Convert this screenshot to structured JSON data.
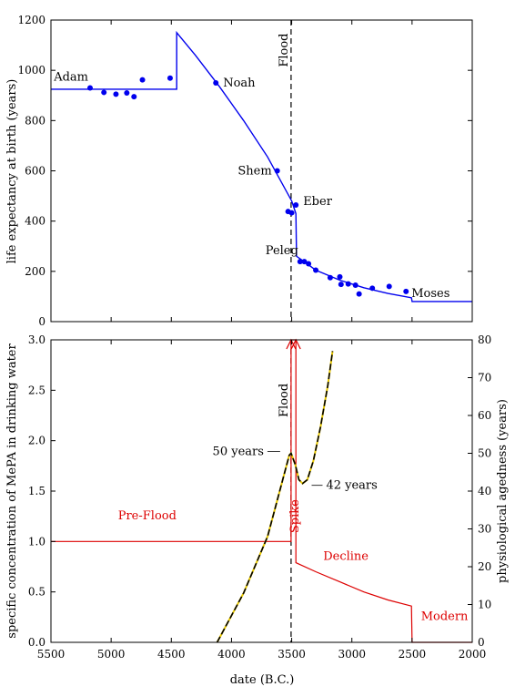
{
  "chart_data": [
    {
      "type": "scatter",
      "ylabel": "life expectancy at birth (years)",
      "xlim": [
        5500,
        2000
      ],
      "ylim": [
        0,
        1200
      ],
      "yticks": [
        0,
        200,
        400,
        600,
        800,
        1000,
        1200
      ],
      "points": [
        {
          "x": 5175,
          "y": 930
        },
        {
          "x": 5060,
          "y": 912
        },
        {
          "x": 4960,
          "y": 905
        },
        {
          "x": 4870,
          "y": 910
        },
        {
          "x": 4810,
          "y": 895
        },
        {
          "x": 4740,
          "y": 962
        },
        {
          "x": 4510,
          "y": 969
        },
        {
          "x": 4130,
          "y": 950
        },
        {
          "x": 3620,
          "y": 600
        },
        {
          "x": 3530,
          "y": 438
        },
        {
          "x": 3500,
          "y": 433
        },
        {
          "x": 3465,
          "y": 464
        },
        {
          "x": 3430,
          "y": 239
        },
        {
          "x": 3395,
          "y": 239
        },
        {
          "x": 3360,
          "y": 230
        },
        {
          "x": 3300,
          "y": 205
        },
        {
          "x": 3180,
          "y": 175
        },
        {
          "x": 3100,
          "y": 178
        },
        {
          "x": 3090,
          "y": 148
        },
        {
          "x": 3030,
          "y": 150
        },
        {
          "x": 2970,
          "y": 145
        },
        {
          "x": 2940,
          "y": 110
        },
        {
          "x": 2830,
          "y": 133
        },
        {
          "x": 2690,
          "y": 140
        },
        {
          "x": 2550,
          "y": 120
        }
      ],
      "model_curve": [
        {
          "x": 5500,
          "y": 925
        },
        {
          "x": 4455,
          "y": 925
        },
        {
          "x": 4455,
          "y": 1150
        },
        {
          "x": 4300,
          "y": 1060
        },
        {
          "x": 4100,
          "y": 935
        },
        {
          "x": 3900,
          "y": 800
        },
        {
          "x": 3700,
          "y": 655
        },
        {
          "x": 3500,
          "y": 480
        },
        {
          "x": 3465,
          "y": 430
        },
        {
          "x": 3460,
          "y": 260
        },
        {
          "x": 3400,
          "y": 240
        },
        {
          "x": 3300,
          "y": 205
        },
        {
          "x": 3100,
          "y": 165
        },
        {
          "x": 2900,
          "y": 135
        },
        {
          "x": 2700,
          "y": 112
        },
        {
          "x": 2505,
          "y": 95
        },
        {
          "x": 2500,
          "y": 80
        },
        {
          "x": 2000,
          "y": 80
        }
      ],
      "flood_x": 3505,
      "annotations": [
        {
          "text": "Adam",
          "x": 5175,
          "y": 930
        },
        {
          "text": "Noah",
          "x": 4130,
          "y": 950
        },
        {
          "text": "Shem",
          "x": 3620,
          "y": 600
        },
        {
          "text": "Eber",
          "x": 3465,
          "y": 464
        },
        {
          "text": "Peleg",
          "x": 3430,
          "y": 239
        },
        {
          "text": "Moses",
          "x": 2550,
          "y": 120
        },
        {
          "text": "Flood",
          "x": 3505,
          "y": 1080
        }
      ],
      "colors": {
        "points": "#0000ee",
        "curve": "#0000ee"
      }
    },
    {
      "type": "line",
      "ylabel": "specific concentration of MePA in drinking water",
      "y2label": "physiological agedness (years)",
      "xlabel": "date (B.C.)",
      "xlim": [
        5500,
        2000
      ],
      "ylim": [
        0.0,
        3.0
      ],
      "y2lim": [
        0,
        80
      ],
      "xticks": [
        5500,
        5000,
        4500,
        4000,
        3500,
        3000,
        2500,
        2000
      ],
      "yticks": [
        0.0,
        0.5,
        1.0,
        1.5,
        2.0,
        2.5,
        3.0
      ],
      "y2ticks": [
        0,
        10,
        20,
        30,
        40,
        50,
        60,
        70,
        80
      ],
      "series": [
        {
          "values": [
            {
              "x": 5500,
              "y": 1.0
            },
            {
              "x": 3505,
              "y": 1.0
            },
            {
              "x": 3505,
              "y": 3.0
            },
            {
              "x": 3465,
              "y": 3.0
            },
            {
              "x": 3465,
              "y": 0.79
            },
            {
              "x": 3300,
              "y": 0.7
            },
            {
              "x": 3100,
              "y": 0.6
            },
            {
              "x": 2900,
              "y": 0.5
            },
            {
              "x": 2700,
              "y": 0.42
            },
            {
              "x": 2505,
              "y": 0.36
            },
            {
              "x": 2500,
              "y": 0.0
            },
            {
              "x": 2000,
              "y": 0.0
            }
          ],
          "color": "#dd0000"
        },
        {
          "axis": "right",
          "values": [
            {
              "x": 4120,
              "y": 0
            },
            {
              "x": 3900,
              "y": 13
            },
            {
              "x": 3700,
              "y": 28
            },
            {
              "x": 3520,
              "y": 49.5
            },
            {
              "x": 3505,
              "y": 50
            },
            {
              "x": 3470,
              "y": 47
            },
            {
              "x": 3440,
              "y": 43
            },
            {
              "x": 3410,
              "y": 42
            },
            {
              "x": 3370,
              "y": 43
            },
            {
              "x": 3320,
              "y": 48
            },
            {
              "x": 3260,
              "y": 57
            },
            {
              "x": 3200,
              "y": 68
            },
            {
              "x": 3160,
              "y": 77
            }
          ],
          "color": "#000000"
        }
      ],
      "flood_x": 3505,
      "annotations": [
        {
          "text": "Pre-Flood",
          "x": 4700,
          "y": 1.22,
          "color": "#dd0000"
        },
        {
          "text": "Spike",
          "x": 3465,
          "y": 1.25,
          "color": "#dd0000"
        },
        {
          "text": "Decline",
          "x": 3050,
          "y": 0.82,
          "color": "#dd0000"
        },
        {
          "text": "Modern",
          "x": 2230,
          "y": 0.22,
          "color": "#dd0000"
        },
        {
          "text": "50 years",
          "x": 3505,
          "y2": 50
        },
        {
          "text": "42 years",
          "x": 3410,
          "y2": 42
        },
        {
          "text": "Flood",
          "x": 3505,
          "y": 2.4
        }
      ]
    }
  ]
}
